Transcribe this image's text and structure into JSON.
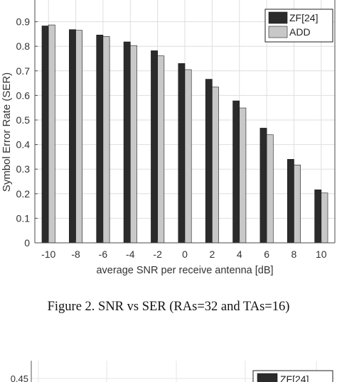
{
  "chart_data": [
    {
      "type": "bar",
      "categories": [
        "-10",
        "-8",
        "-6",
        "-4",
        "-2",
        "0",
        "2",
        "4",
        "6",
        "8",
        "10"
      ],
      "series": [
        {
          "name": "ZF[24]",
          "values": [
            0.883,
            0.868,
            0.846,
            0.818,
            0.782,
            0.73,
            0.666,
            0.578,
            0.467,
            0.34,
            0.216
          ]
        },
        {
          "name": "ADD",
          "values": [
            0.887,
            0.865,
            0.84,
            0.803,
            0.761,
            0.705,
            0.634,
            0.549,
            0.44,
            0.317,
            0.203
          ]
        }
      ],
      "title": "",
      "xlabel": "average SNR per receive antenna [dB]",
      "ylabel": "Symbol Error Rate (SER)",
      "ylim": [
        0,
        1
      ],
      "yticks": [
        "0",
        "0.1",
        "0.2",
        "0.3",
        "0.4",
        "0.5",
        "0.6",
        "0.7",
        "0.8",
        "0.9"
      ],
      "grid": true,
      "legend": "top-right",
      "colors": {
        "series": [
          "#2b2b2b",
          "#c8c8c8"
        ],
        "grid": "#dedede",
        "axis": "#4a4a4a",
        "text": "#333333"
      }
    },
    {
      "type": "bar",
      "series": [
        {
          "name": "ZF[24]",
          "values": []
        }
      ],
      "yticks": [
        "0.45"
      ],
      "legend": "top-right"
    }
  ],
  "caption": "Figure 2. SNR vs SER (RAs=32 and TAs=16)"
}
